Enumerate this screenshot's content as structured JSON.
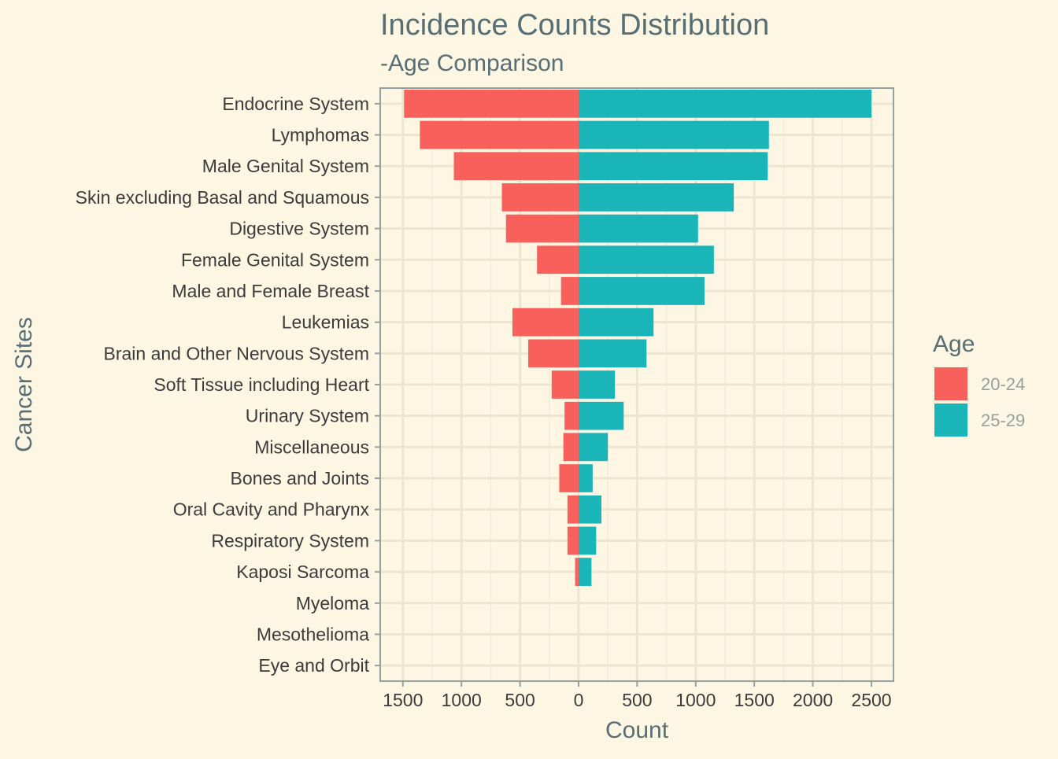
{
  "colors": {
    "background": "#fdf6e3",
    "panel_border": "#93a1a1",
    "grid_major": "#ede5d0",
    "grid_minor": "#f3ecda",
    "title_text": "#586e75",
    "axis_text": "#3b3b3b",
    "legend_text": "#93a1a1"
  },
  "chart_data": {
    "type": "bar",
    "orientation": "horizontal-diverging",
    "title": "Incidence Counts Distribution",
    "subtitle": "-Age Comparison",
    "xlabel": "Count",
    "ylabel": "Cancer Sites",
    "xlim": [
      -1700,
      2700
    ],
    "x_ticks": [
      -1500,
      -1000,
      -500,
      0,
      500,
      1000,
      1500,
      2000,
      2500
    ],
    "x_tick_labels": [
      "1500",
      "1000",
      "500",
      "0",
      "500",
      "1000",
      "1500",
      "2000",
      "2500"
    ],
    "grid": true,
    "legend": {
      "title": "Age",
      "placement": "right"
    },
    "categories": [
      "Endocrine System",
      "Lymphomas",
      "Male Genital System",
      "Skin excluding Basal and Squamous",
      "Digestive System",
      "Female Genital System",
      "Male and Female Breast",
      "Leukemias",
      "Brain and Other Nervous System",
      "Soft Tissue including Heart",
      "Urinary System",
      "Miscellaneous",
      "Bones and Joints",
      "Oral Cavity and Pharynx",
      "Respiratory System",
      "Kaposi Sarcoma",
      "Myeloma",
      "Mesothelioma",
      "Eye and Orbit"
    ],
    "series": [
      {
        "name": "20-24",
        "color": "#f8605c",
        "direction": "left",
        "values": [
          1490,
          1355,
          1065,
          655,
          620,
          355,
          150,
          565,
          430,
          230,
          120,
          130,
          165,
          95,
          95,
          30,
          0,
          0,
          0
        ]
      },
      {
        "name": "25-29",
        "color": "#19b5b8",
        "direction": "right",
        "values": [
          2500,
          1625,
          1615,
          1325,
          1020,
          1155,
          1075,
          640,
          580,
          310,
          385,
          250,
          120,
          195,
          150,
          110,
          0,
          0,
          0
        ]
      }
    ]
  }
}
